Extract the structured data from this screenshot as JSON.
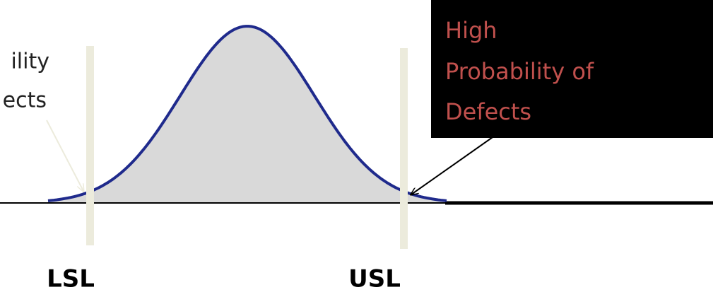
{
  "left_label": {
    "lines": [
      "ility",
      "ects"
    ]
  },
  "right_label": {
    "lines": [
      "High",
      "Probability of",
      "Defects"
    ]
  },
  "limits": {
    "lower": "LSL",
    "upper": "USL"
  }
}
